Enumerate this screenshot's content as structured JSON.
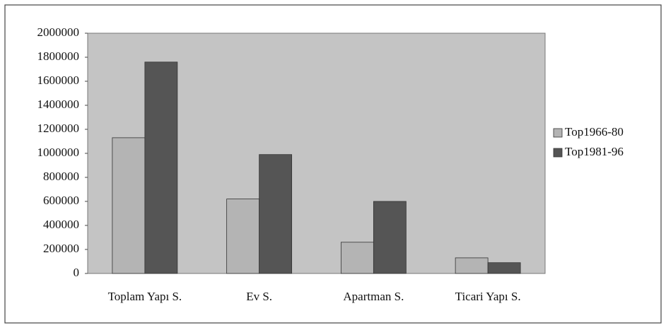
{
  "chart_data": {
    "type": "bar",
    "categories": [
      "Toplam Yapı S.",
      "Ev S.",
      "Apartman S.",
      "Ticari Yapı S."
    ],
    "series": [
      {
        "name": "Top1966-80",
        "color": "#b4b4b4",
        "values": [
          1130000,
          620000,
          260000,
          130000
        ]
      },
      {
        "name": "Top1981-96",
        "color": "#555555",
        "values": [
          1760000,
          990000,
          600000,
          90000
        ]
      }
    ],
    "ylim": [
      0,
      2000000
    ],
    "yticks": [
      0,
      200000,
      400000,
      600000,
      800000,
      1000000,
      1200000,
      1400000,
      1600000,
      1800000,
      2000000
    ],
    "legend": "right"
  }
}
